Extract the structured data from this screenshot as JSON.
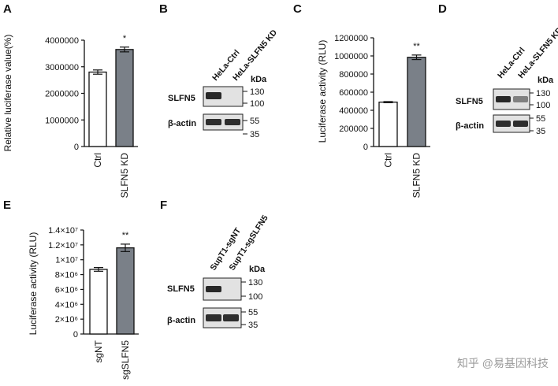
{
  "colors": {
    "ctrl_bar": "#ffffff",
    "kd_bar": "#7a8088",
    "axis": "#111111",
    "blot_bg": "#e2e2e2",
    "band": "#1e1e1e"
  },
  "panels": {
    "A": {
      "letter": "A"
    },
    "B": {
      "letter": "B"
    },
    "C": {
      "letter": "C"
    },
    "D": {
      "letter": "D"
    },
    "E": {
      "letter": "E"
    },
    "F": {
      "letter": "F"
    }
  },
  "chart_data": [
    {
      "panel": "A",
      "type": "bar",
      "ylabel": "Relative luciferase value(%)",
      "categories": [
        "Ctrl",
        "SLFN5 KD"
      ],
      "values": [
        2800000,
        3650000
      ],
      "errors": [
        80000,
        90000
      ],
      "significance": [
        "",
        "*"
      ],
      "ylim": [
        0,
        4000000
      ],
      "ticks": [
        0,
        1000000,
        2000000,
        3000000,
        4000000
      ],
      "tick_labels": [
        "0",
        "1000000",
        "2000000",
        "3000000",
        "4000000"
      ]
    },
    {
      "panel": "C",
      "type": "bar",
      "ylabel": "Luciferase activity (RLU)",
      "categories": [
        "Ctrl",
        "SLFN5 KD"
      ],
      "values": [
        490000,
        985000
      ],
      "errors": [
        6000,
        25000
      ],
      "significance": [
        "",
        "**"
      ],
      "ylim": [
        0,
        1200000
      ],
      "ticks": [
        0,
        200000,
        400000,
        600000,
        800000,
        1000000,
        1200000
      ],
      "tick_labels": [
        "0",
        "200000",
        "400000",
        "600000",
        "800000",
        "1000000",
        "1200000"
      ]
    },
    {
      "panel": "E",
      "type": "bar",
      "ylabel": "Luciferase activity (RLU)",
      "categories": [
        "sgNT",
        "sgSLFN5"
      ],
      "values": [
        8700000,
        11600000
      ],
      "errors": [
        250000,
        500000
      ],
      "significance": [
        "",
        "**"
      ],
      "ylim": [
        0,
        14000000
      ],
      "ticks": [
        0,
        2000000,
        4000000,
        6000000,
        8000000,
        10000000,
        12000000,
        14000000
      ],
      "tick_labels": [
        "0",
        "2×10⁶",
        "4×10⁶",
        "6×10⁶",
        "8×10⁶",
        "1×10⁷",
        "1.2×10⁷",
        "1.4×10⁷"
      ]
    }
  ],
  "blots": {
    "B": {
      "lanes": [
        "HeLa-Ctrl",
        "HeLa-SLFN5 KD"
      ],
      "rows": [
        "SLFN5",
        "β-actin"
      ],
      "kda_title": "kDa",
      "markers": [
        "130",
        "100",
        "55",
        "35"
      ],
      "row1_intensity": [
        0.95,
        0.0
      ]
    },
    "D": {
      "lanes": [
        "HeLa-Ctrl",
        "HeLa-SLFN5 KD"
      ],
      "rows": [
        "SLFN5",
        "β-actin"
      ],
      "kda_title": "kDa",
      "markers": [
        "130",
        "100",
        "55",
        "35"
      ],
      "row1_intensity": [
        0.95,
        0.5
      ]
    },
    "F": {
      "lanes": [
        "SupT1-sgNT",
        "SupT1-sgSLFN5"
      ],
      "rows": [
        "SLFN5",
        "β-actin"
      ],
      "kda_title": "kDa",
      "markers": [
        "130",
        "100",
        "55",
        "35"
      ],
      "row1_intensity": [
        0.95,
        0.0
      ]
    }
  },
  "watermark": "知乎 @易基因科技"
}
